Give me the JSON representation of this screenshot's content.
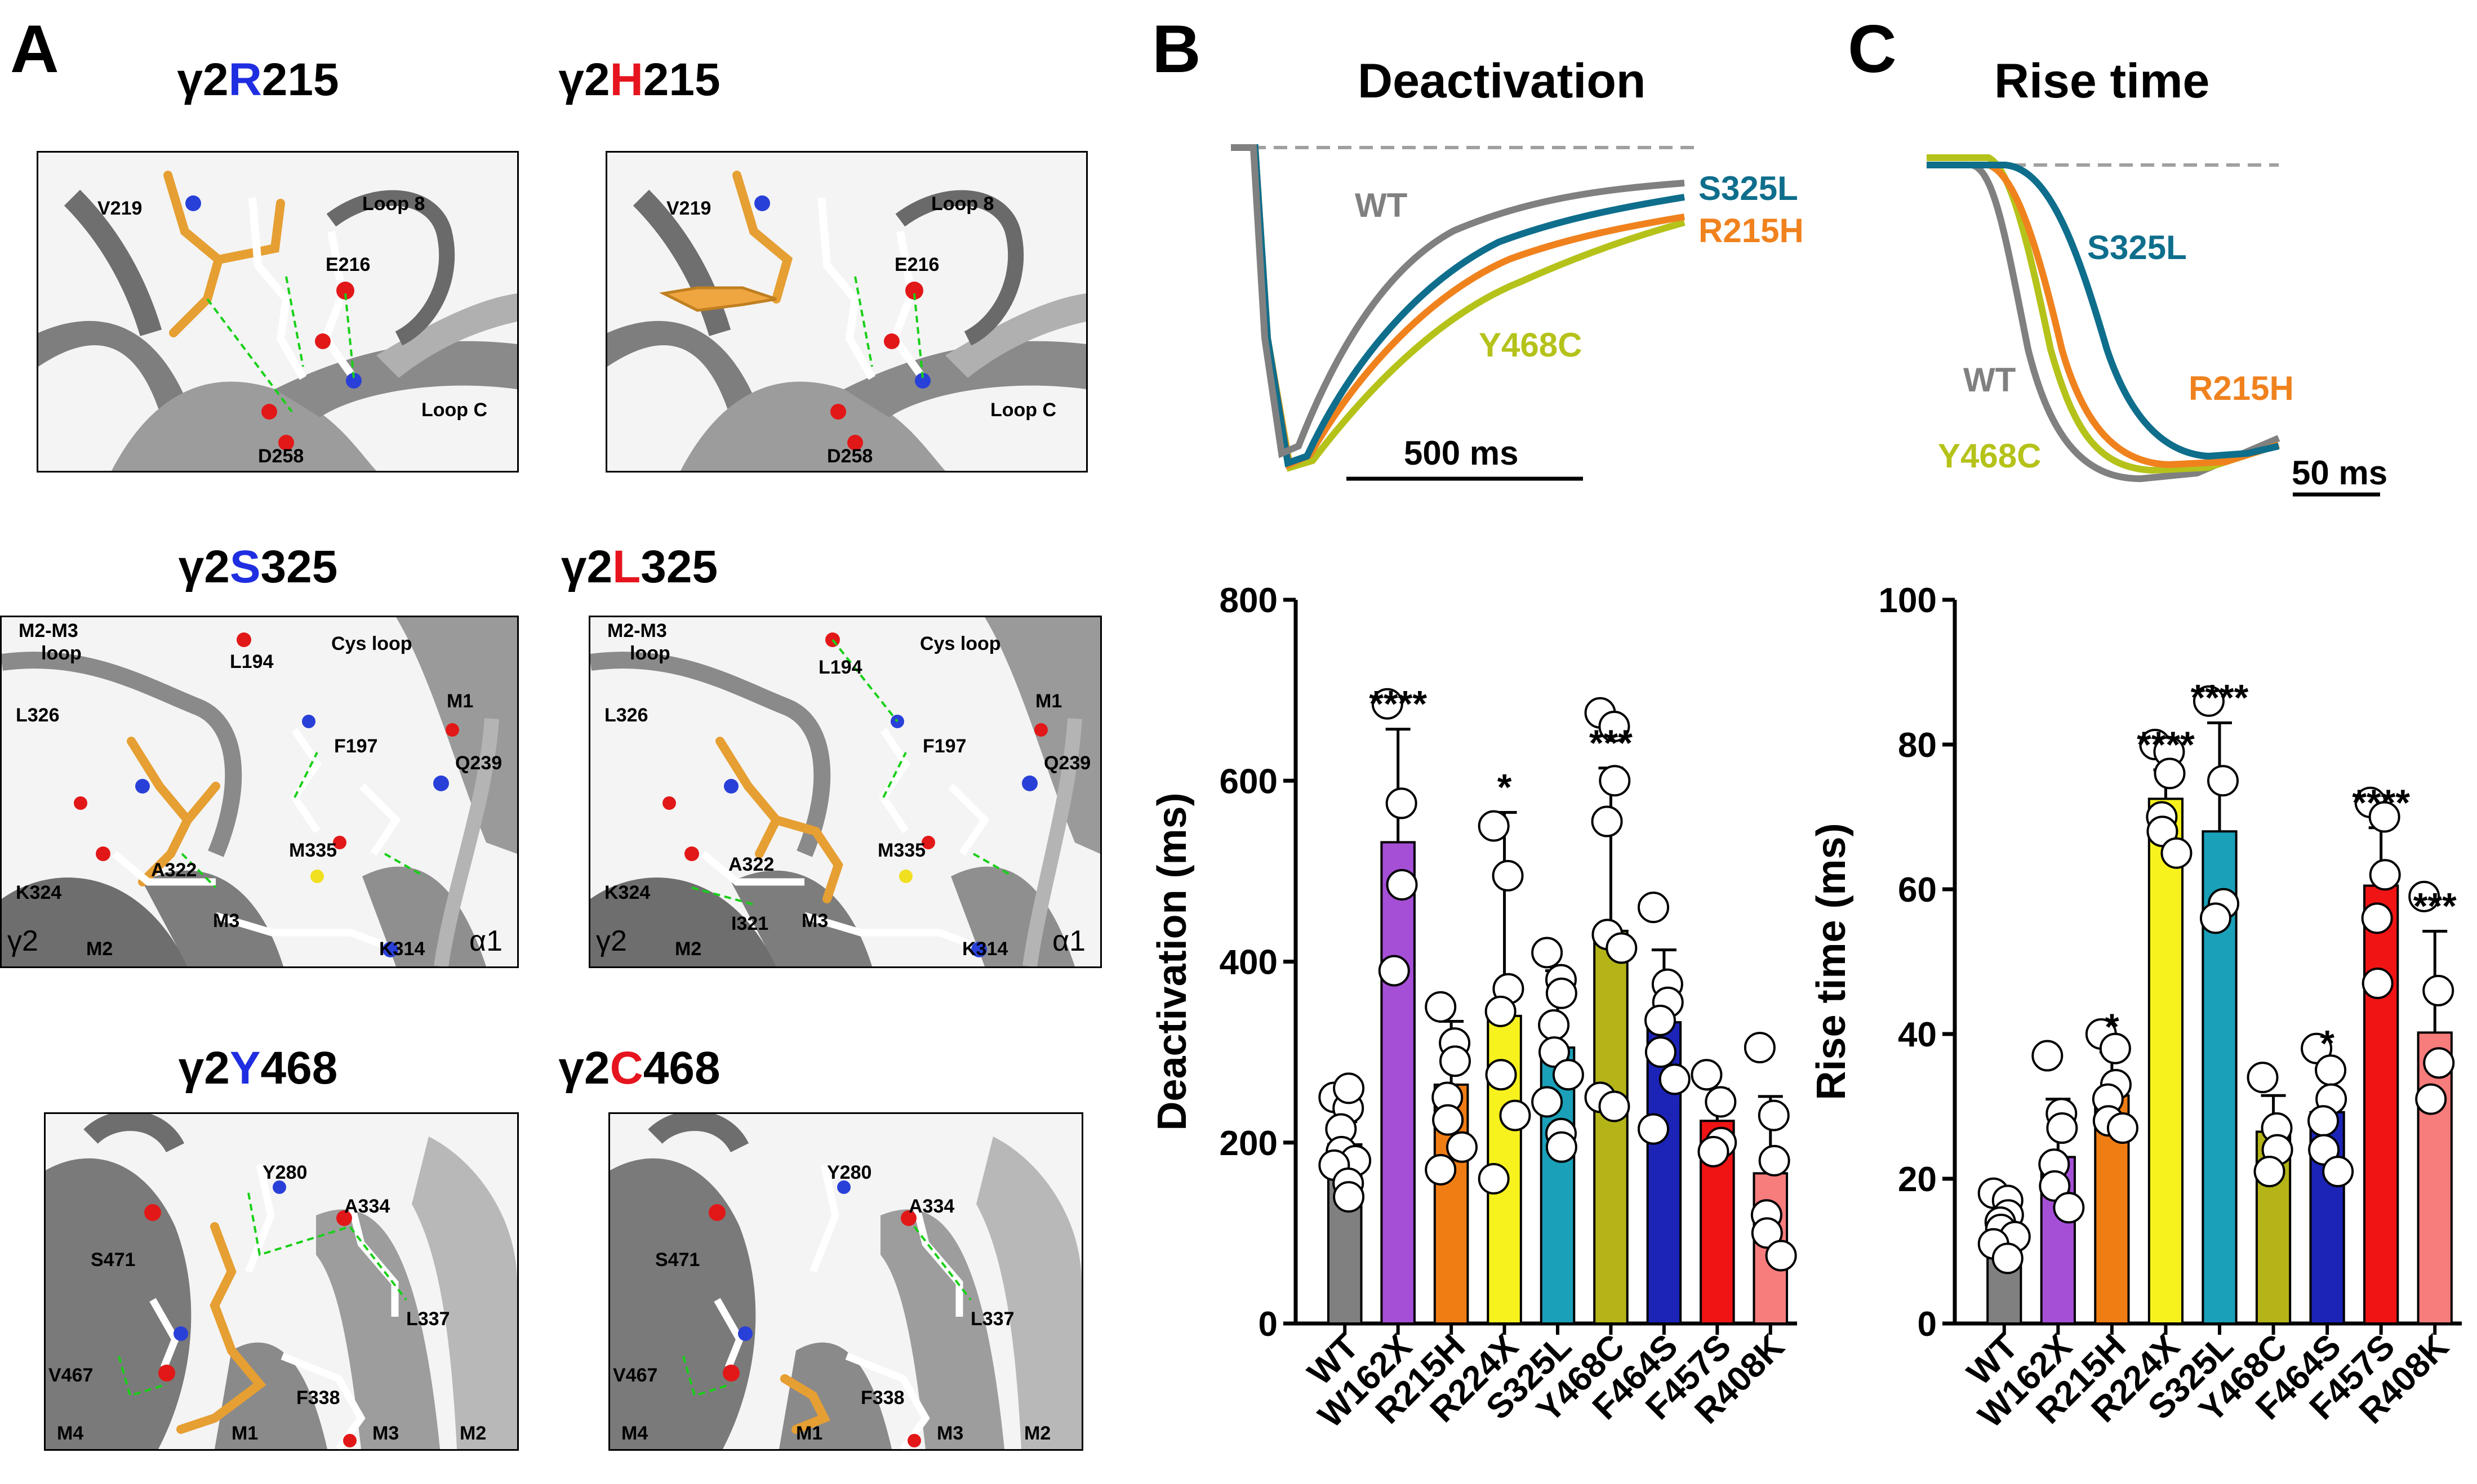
{
  "figure": {
    "panel_labels": {
      "a": "A",
      "b": "B",
      "c": "C"
    },
    "structures": [
      {
        "prefix": "γ2",
        "residue": "R",
        "number": "215",
        "variant": "wt",
        "labels": [
          "V219",
          "Loop 8",
          "E216",
          "Loop C",
          "D258"
        ]
      },
      {
        "prefix": "γ2",
        "residue": "H",
        "number": "215",
        "variant": "mut",
        "labels": [
          "V219",
          "Loop 8",
          "E216",
          "Loop C",
          "D258"
        ]
      },
      {
        "prefix": "γ2",
        "residue": "S",
        "number": "325",
        "variant": "wt",
        "labels": [
          "M2-M3",
          "loop",
          "L194",
          "Cys loop",
          "L326",
          "F197",
          "M1",
          "Q239",
          "A322",
          "M335",
          "K324",
          "M3",
          "K314",
          "M2",
          "γ2",
          "α1"
        ]
      },
      {
        "prefix": "γ2",
        "residue": "L",
        "number": "325",
        "variant": "mut",
        "labels": [
          "M2-M3",
          "loop",
          "L194",
          "Cys loop",
          "L326",
          "F197",
          "M1",
          "Q239",
          "A322",
          "M335",
          "K324",
          "M3",
          "I321",
          "K314",
          "M2",
          "γ2",
          "α1"
        ]
      },
      {
        "prefix": "γ2",
        "residue": "Y",
        "number": "468",
        "variant": "wt",
        "labels": [
          "Y280",
          "A334",
          "S471",
          "L337",
          "V467",
          "F338",
          "M4",
          "M1",
          "M3",
          "M2"
        ]
      },
      {
        "prefix": "γ2",
        "residue": "C",
        "number": "468",
        "variant": "mut",
        "labels": [
          "Y280",
          "A334",
          "S471",
          "L337",
          "V467",
          "F338",
          "M4",
          "M1",
          "M3",
          "M2"
        ]
      }
    ]
  },
  "traces": {
    "deactivation": {
      "title": "Deactivation",
      "scale_label": "500 ms",
      "series": [
        {
          "name": "WT",
          "color": "#808080"
        },
        {
          "name": "S325L",
          "color": "#0e6e8c"
        },
        {
          "name": "R215H",
          "color": "#f0821e"
        },
        {
          "name": "Y468C",
          "color": "#b5c21a"
        }
      ]
    },
    "rise": {
      "title": "Rise time",
      "scale_label": "50 ms",
      "series": [
        {
          "name": "WT",
          "color": "#808080"
        },
        {
          "name": "S325L",
          "color": "#0e6e8c"
        },
        {
          "name": "R215H",
          "color": "#f0821e"
        },
        {
          "name": "Y468C",
          "color": "#b5c21a"
        }
      ]
    }
  },
  "chart_data": [
    {
      "type": "bar",
      "panel": "B",
      "ylabel": "Deactivation (ms)",
      "ylim": [
        0,
        800
      ],
      "yticks": [
        0,
        200,
        400,
        600,
        800
      ],
      "categories": [
        "WT",
        "W162X",
        "R215H",
        "R224X",
        "S325L",
        "Y468C",
        "F464S",
        "F457S",
        "R408K"
      ],
      "colors": [
        "#808080",
        "#a54fd6",
        "#f07d14",
        "#f7f21e",
        "#1aa0b8",
        "#b4b418",
        "#1c24b8",
        "#f01414",
        "#f77c7c"
      ],
      "values": [
        198,
        532,
        264,
        340,
        305,
        434,
        333,
        224,
        166
      ],
      "errors": [
        25,
        125,
        70,
        225,
        85,
        180,
        80,
        35,
        85
      ],
      "significance": [
        "",
        "****",
        "",
        "*",
        "",
        "***",
        "",
        "",
        ""
      ],
      "points": [
        [
          250,
          238,
          260,
          215,
          190,
          180,
          175,
          155,
          140
        ],
        [
          685,
          575,
          485,
          390
        ],
        [
          350,
          310,
          290,
          250,
          225,
          195,
          170
        ],
        [
          550,
          495,
          370,
          345,
          275,
          230,
          160
        ],
        [
          410,
          380,
          365,
          330,
          300,
          275,
          245,
          210,
          195
        ],
        [
          675,
          660,
          600,
          555,
          430,
          415,
          250,
          240
        ],
        [
          460,
          375,
          355,
          335,
          300,
          270,
          215
        ],
        [
          275,
          245,
          200,
          190
        ],
        [
          305,
          230,
          180,
          120,
          100,
          75
        ]
      ]
    },
    {
      "type": "bar",
      "panel": "C",
      "ylabel": "Rise time (ms)",
      "ylim": [
        0,
        100
      ],
      "yticks": [
        0,
        20,
        40,
        60,
        80,
        100
      ],
      "categories": [
        "WT",
        "W162X",
        "R215H",
        "R224X",
        "S325L",
        "Y468C",
        "F464S",
        "F457S",
        "R408K"
      ],
      "colors": [
        "#808080",
        "#a54fd6",
        "#f07d14",
        "#f7f21e",
        "#1aa0b8",
        "#b4b418",
        "#1c24b8",
        "#f01414",
        "#f77c7c"
      ],
      "values": [
        13.5,
        23,
        31.5,
        72.5,
        68,
        26.5,
        29.2,
        60.5,
        40.2
      ],
      "errors": [
        3,
        8,
        6,
        4,
        15,
        5,
        6,
        8,
        14
      ],
      "significance": [
        "",
        "",
        "*",
        "****",
        "****",
        "",
        "*",
        "****",
        "***"
      ],
      "points": [
        [
          18,
          17,
          15,
          14,
          13,
          12,
          11,
          9
        ],
        [
          37,
          29,
          27,
          22,
          19,
          16
        ],
        [
          40,
          38,
          33,
          31,
          28,
          27
        ],
        [
          80,
          79,
          76,
          70,
          68,
          65
        ],
        [
          86,
          75,
          58,
          56
        ],
        [
          34,
          27,
          24,
          21
        ],
        [
          38,
          35,
          31,
          28,
          24,
          21
        ],
        [
          72,
          70,
          62,
          56,
          47
        ],
        [
          59,
          46,
          36,
          31
        ]
      ]
    }
  ]
}
